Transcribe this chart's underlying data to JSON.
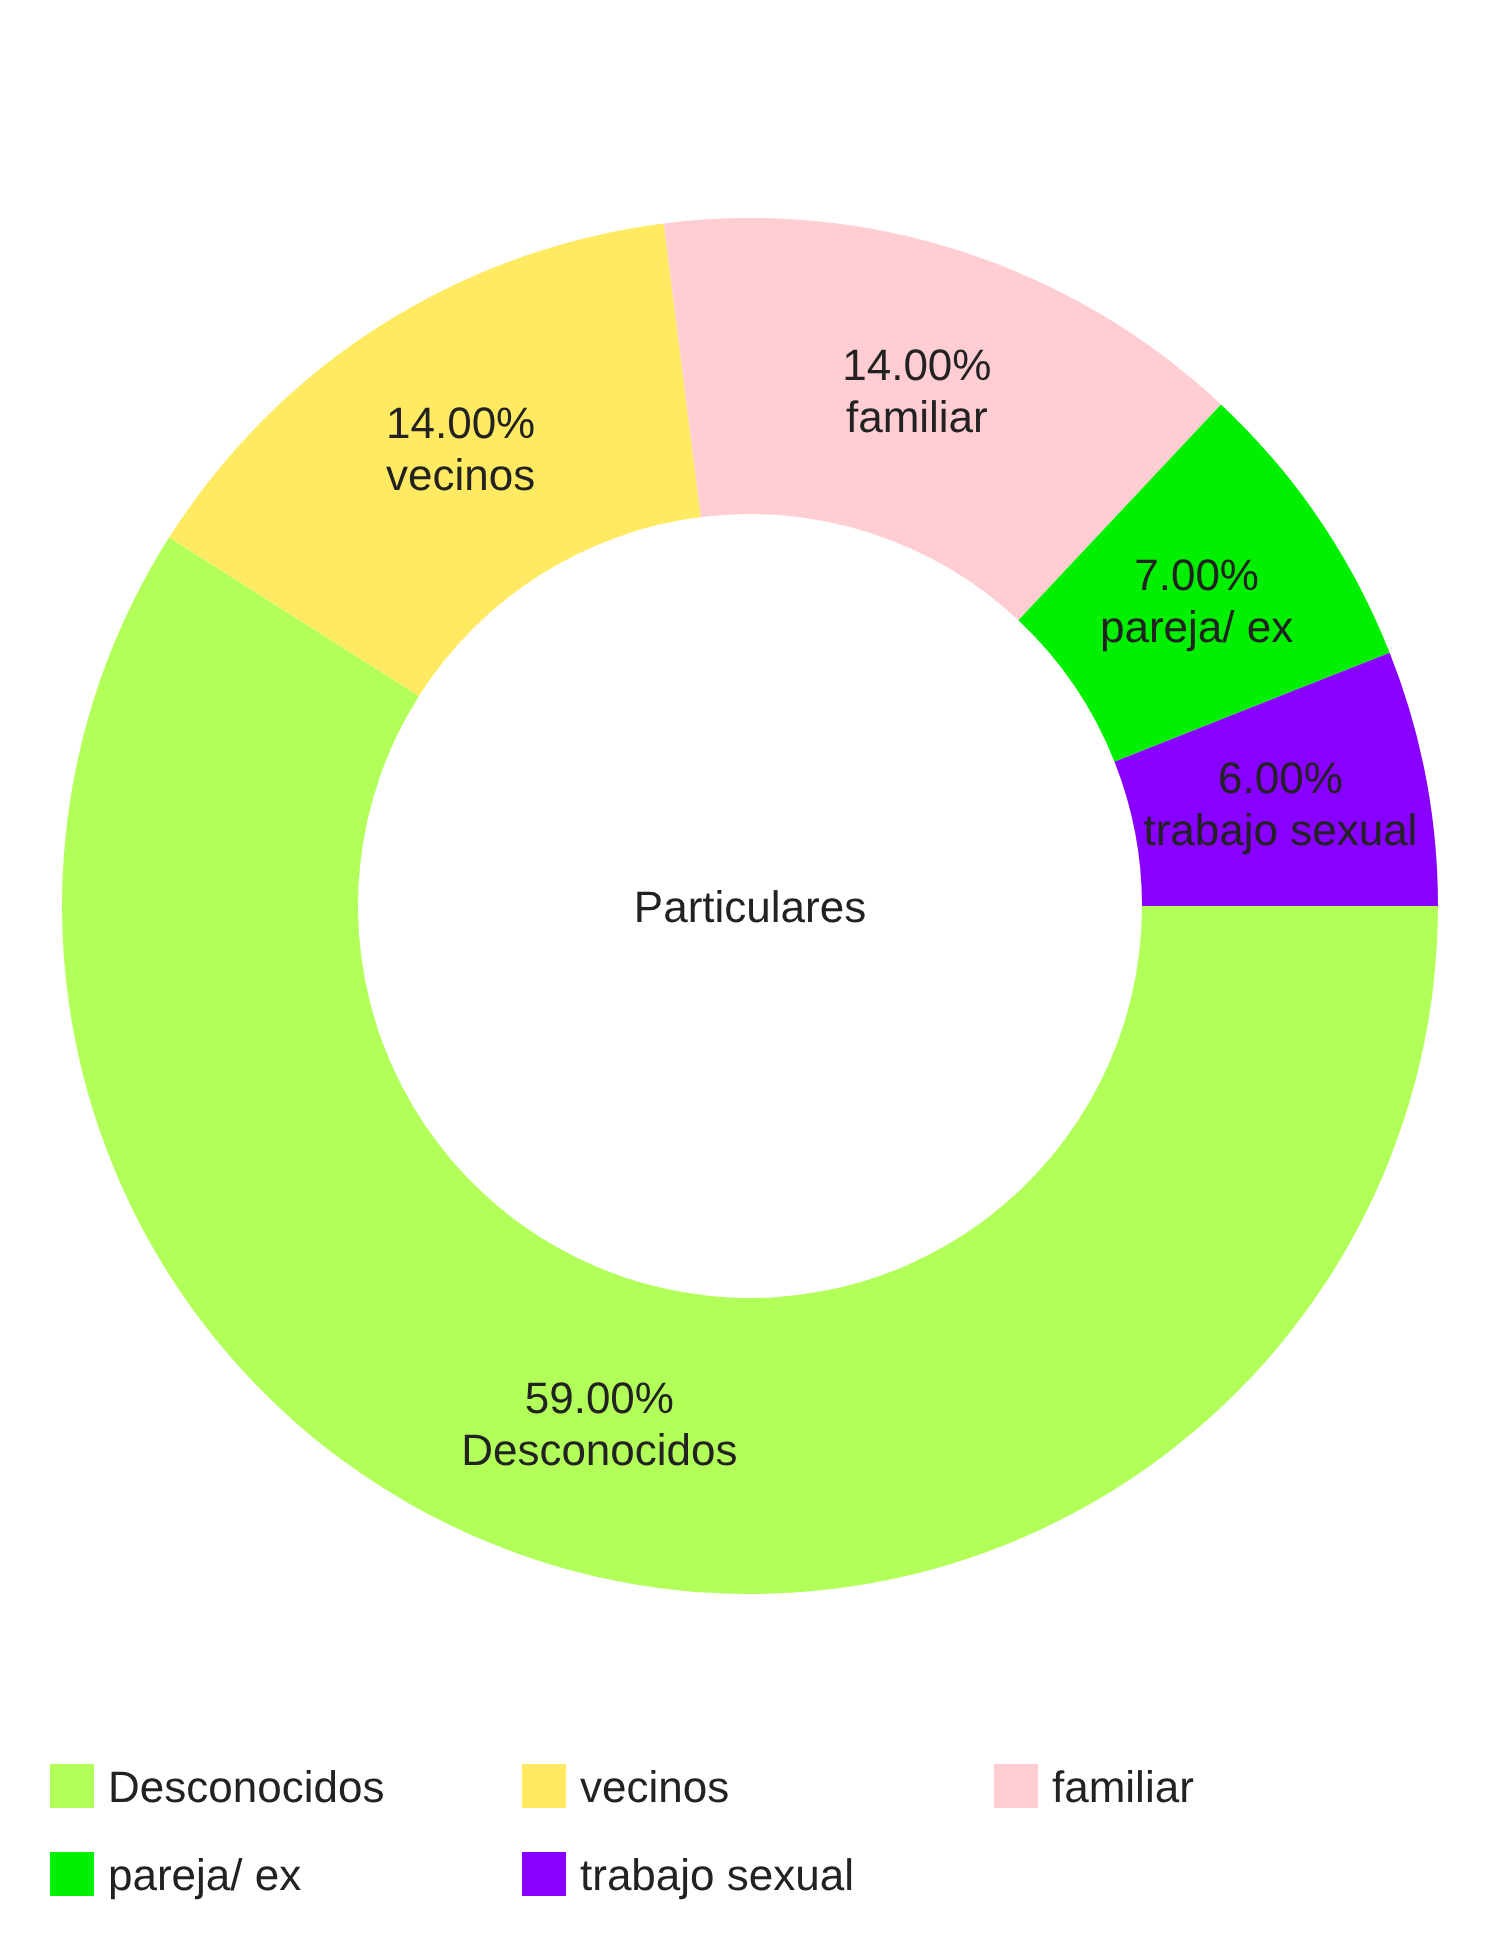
{
  "chart_data": {
    "type": "donut",
    "title": "Particulares",
    "categories": [
      "Desconocidos",
      "vecinos",
      "familiar",
      "pareja/ ex",
      "trabajo sexual"
    ],
    "values": [
      59,
      14,
      14,
      7,
      6
    ],
    "value_labels": [
      "59.00%",
      "14.00%",
      "14.00%",
      "7.00%",
      "6.00%"
    ],
    "colors": [
      "#b2ff59",
      "#ffea61",
      "#ffcdd2",
      "#00f000",
      "#8800ff"
    ],
    "legend": "bottom"
  }
}
